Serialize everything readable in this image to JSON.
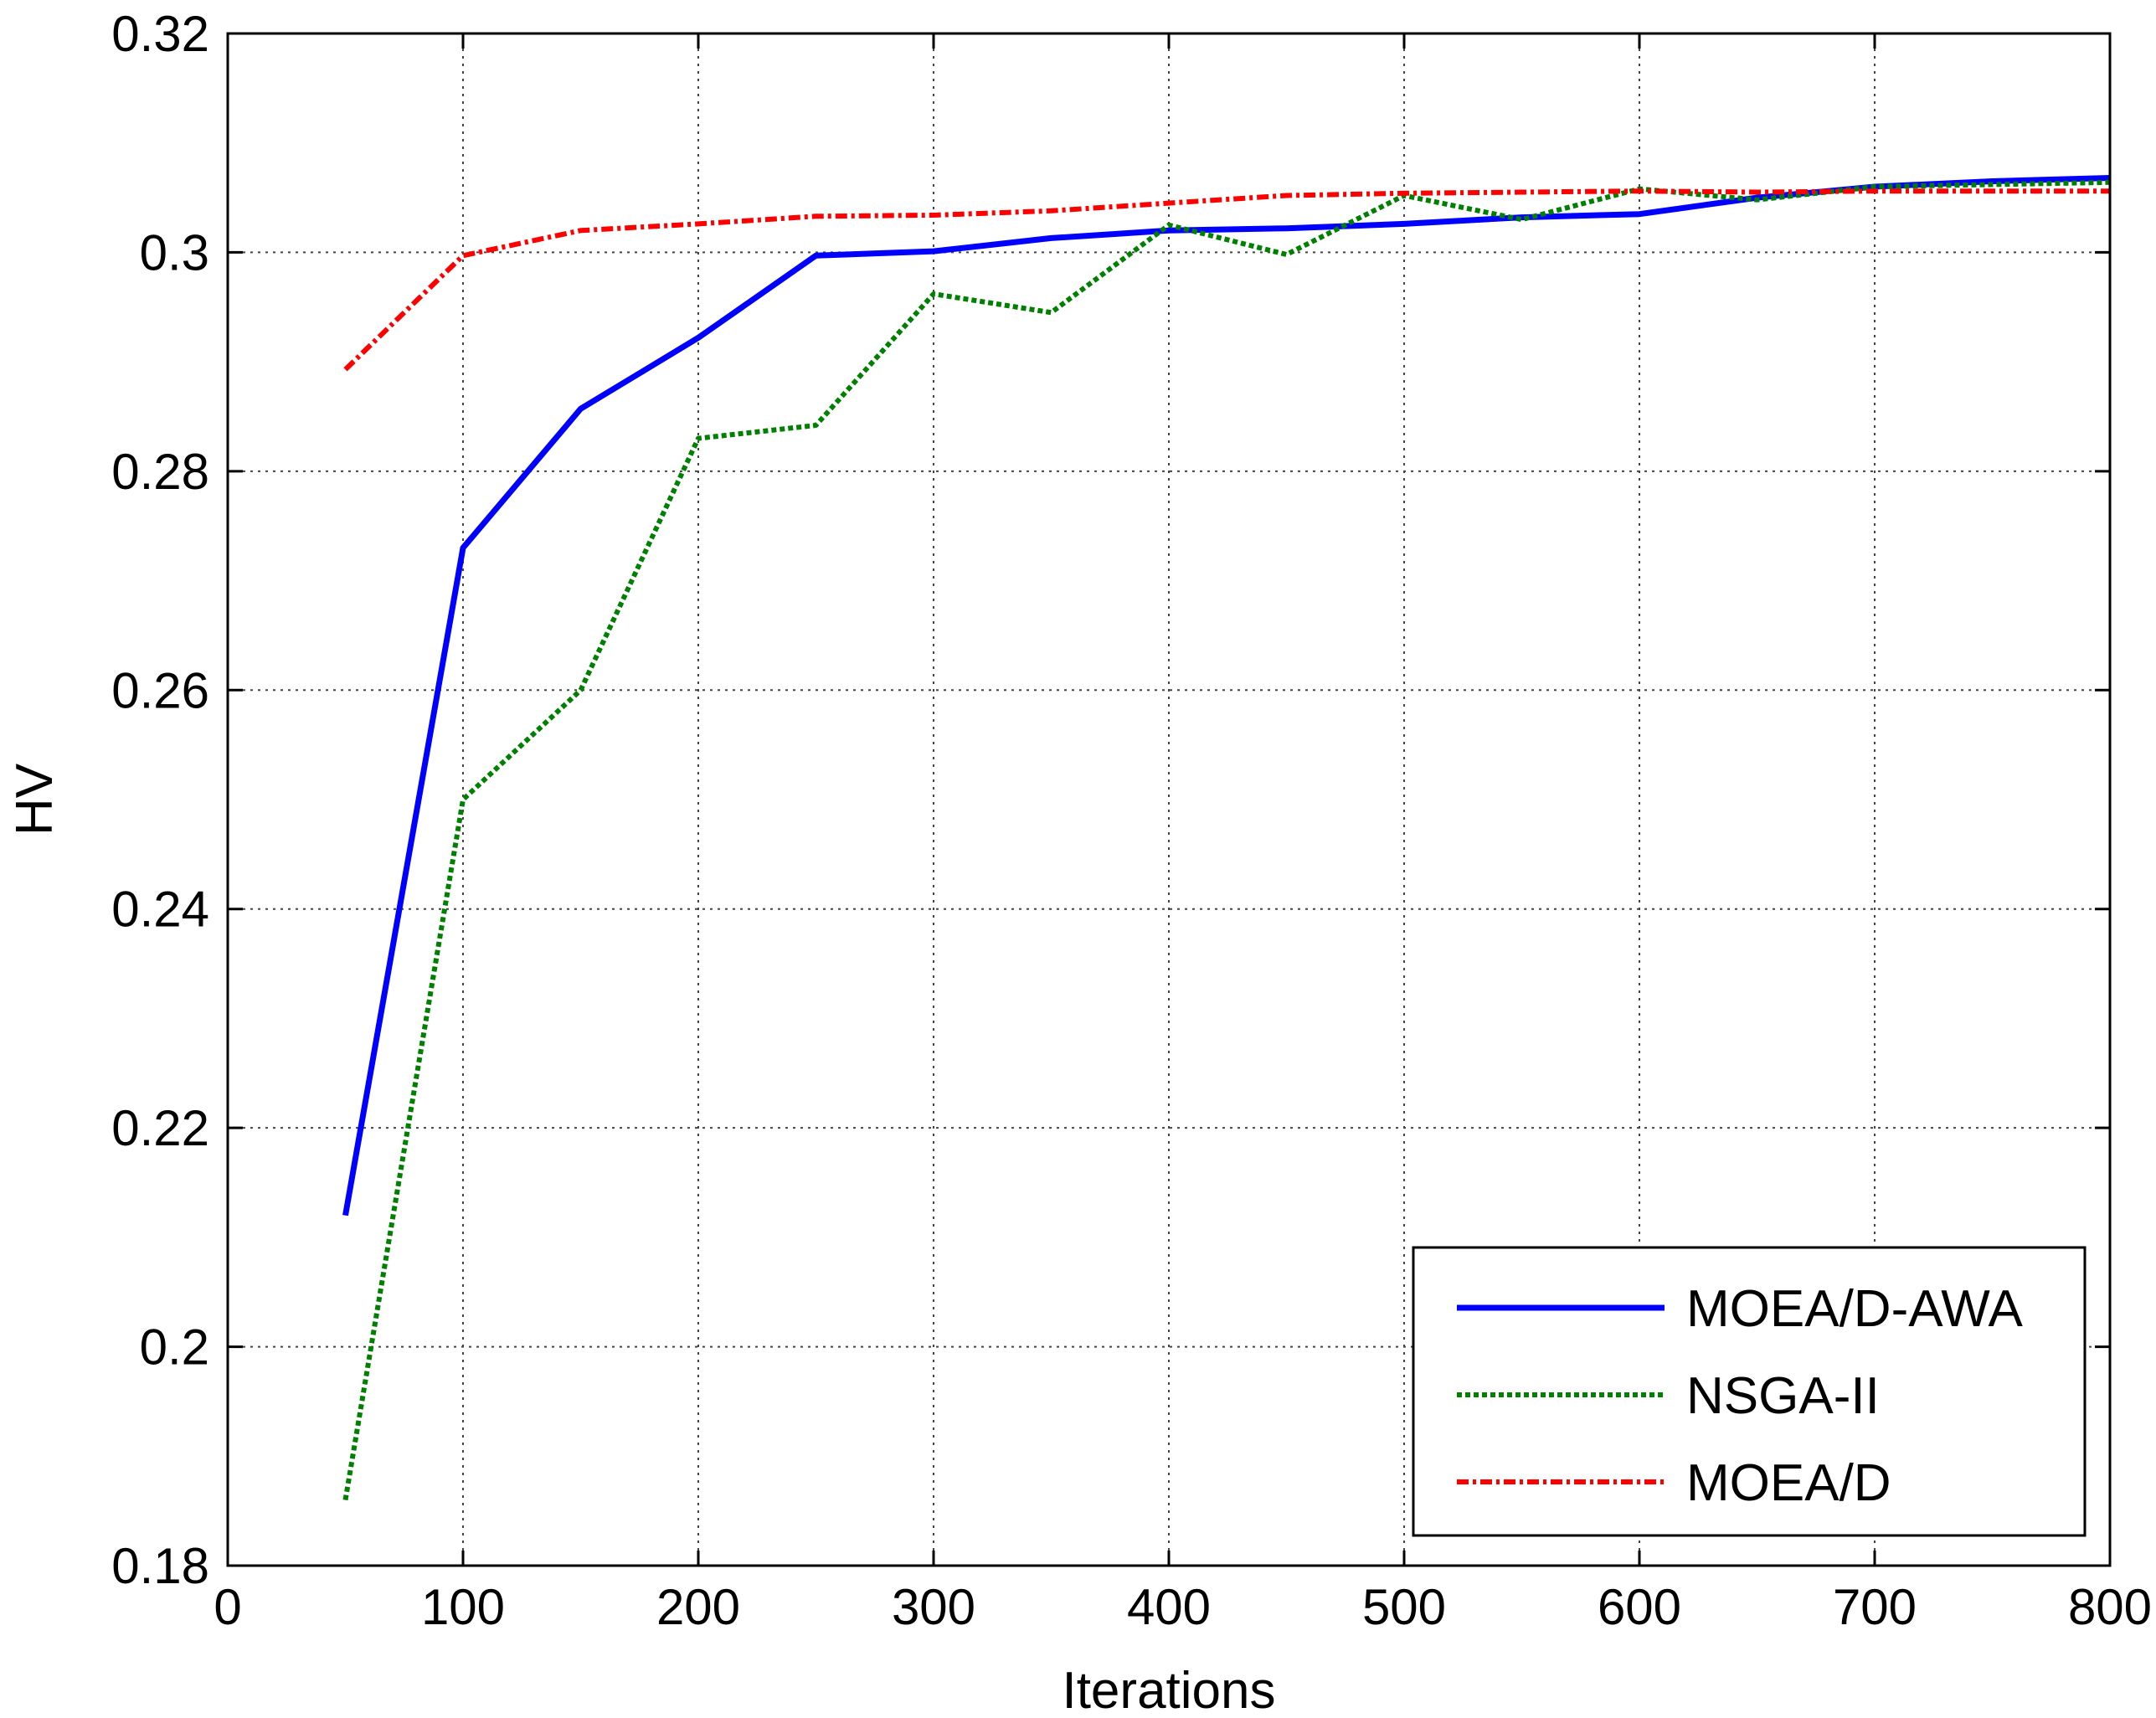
{
  "chart_data": {
    "type": "line",
    "xlabel": "Iterations",
    "ylabel": "HV",
    "xlim": [
      0,
      800
    ],
    "ylim": [
      0.18,
      0.32
    ],
    "xticks": [
      0,
      100,
      200,
      300,
      400,
      500,
      600,
      700,
      800
    ],
    "yticks": [
      0.18,
      0.2,
      0.22,
      0.24,
      0.26,
      0.28,
      0.3,
      0.32
    ],
    "xtick_labels": [
      "0",
      "100",
      "200",
      "300",
      "400",
      "500",
      "600",
      "700",
      "800"
    ],
    "ytick_labels": [
      "0.18",
      "0.2",
      "0.22",
      "0.24",
      "0.26",
      "0.28",
      "0.3",
      "0.32"
    ],
    "grid": true,
    "legend_position": "bottom-right",
    "x": [
      50,
      100,
      150,
      200,
      250,
      300,
      350,
      400,
      450,
      500,
      550,
      600,
      650,
      700,
      750,
      800
    ],
    "series": [
      {
        "name": "MOEA/D-AWA",
        "color": "#0000ff",
        "style": "solid",
        "values": [
          0.212,
          0.273,
          0.2857,
          0.2922,
          0.2997,
          0.3001,
          0.3013,
          0.302,
          0.3022,
          0.3026,
          0.3032,
          0.3035,
          0.305,
          0.306,
          0.3065,
          0.3068
        ]
      },
      {
        "name": "NSGA-II",
        "color": "#008000",
        "style": "dotted",
        "values": [
          0.186,
          0.25,
          0.26,
          0.283,
          0.2842,
          0.2962,
          0.2945,
          0.3025,
          0.2998,
          0.3052,
          0.303,
          0.3058,
          0.3048,
          0.306,
          0.3062,
          0.3064
        ]
      },
      {
        "name": "MOEA/D",
        "color": "#ff0000",
        "style": "dashdot",
        "values": [
          0.2893,
          0.2997,
          0.302,
          0.3026,
          0.3033,
          0.3034,
          0.3038,
          0.3045,
          0.3052,
          0.3054,
          0.3055,
          0.3056,
          0.3055,
          0.3056,
          0.3056,
          0.3056
        ]
      }
    ]
  }
}
